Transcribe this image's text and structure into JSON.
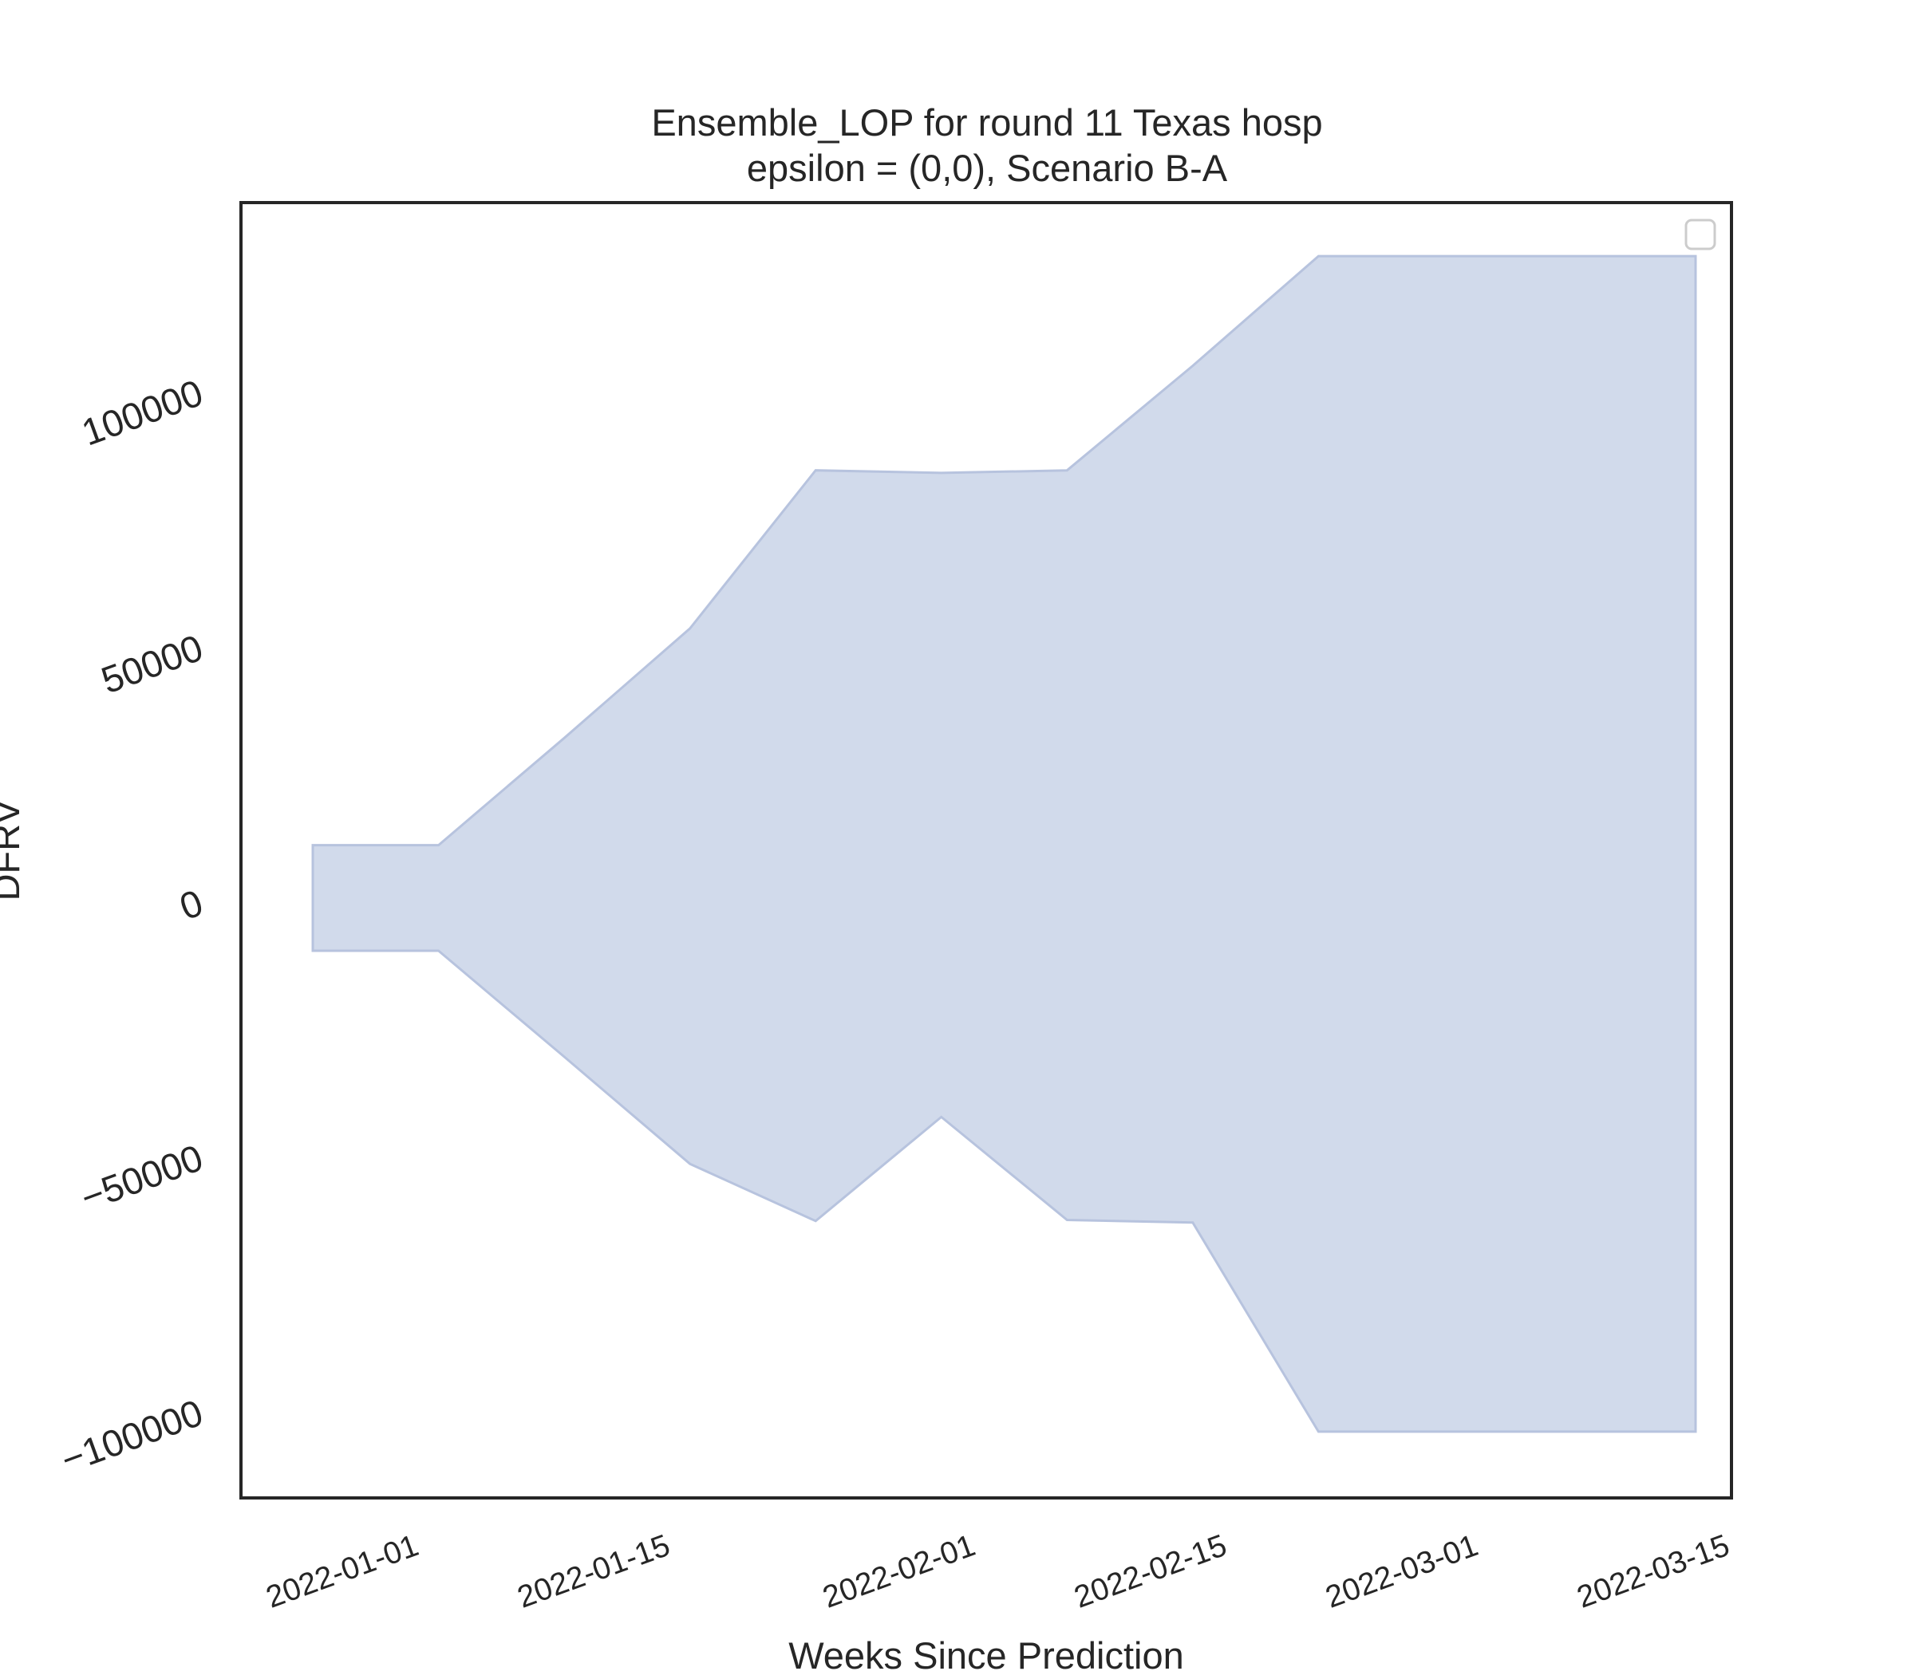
{
  "chart_data": {
    "type": "area",
    "title_line1": "Ensemble_LOP for round 11 Texas hosp",
    "title_line2": "epsilon = (0,0), Scenario B-A",
    "xlabel": "Weeks Since Prediction",
    "ylabel": "DFRV",
    "x_tick_labels": [
      "2022-01-01",
      "2022-01-15",
      "2022-02-01",
      "2022-02-15",
      "2022-03-01",
      "2022-03-15"
    ],
    "y_tick_labels": [
      "−100000",
      "−50000",
      "0",
      "50000",
      "100000"
    ],
    "y_tick_values": [
      -100000,
      -50000,
      0,
      50000,
      100000
    ],
    "xlim": [
      "2021-12-22",
      "2022-03-15"
    ],
    "ylim": [
      -117000,
      137000
    ],
    "legend": "top-right (empty)",
    "grid": false,
    "colors": {
      "fill": "#d1daeb",
      "edge": "#b7c3de",
      "frame": "#262626"
    },
    "series": [
      {
        "x": [
          "2021-12-26",
          "2022-01-02",
          "2022-01-09",
          "2022-01-16",
          "2022-01-23",
          "2022-01-30",
          "2022-02-06",
          "2022-02-13",
          "2022-02-20",
          "2022-02-27",
          "2022-03-06",
          "2022-03-13"
        ],
        "upper": [
          11000,
          11000,
          32000,
          53500,
          84500,
          84000,
          84500,
          105000,
          126500,
          126500,
          126500,
          126500
        ],
        "lower": [
          -9700,
          -9700,
          -30500,
          -51500,
          -62700,
          -42300,
          -62500,
          -63000,
          -104000,
          -104000,
          -104000,
          -104000
        ]
      }
    ]
  }
}
